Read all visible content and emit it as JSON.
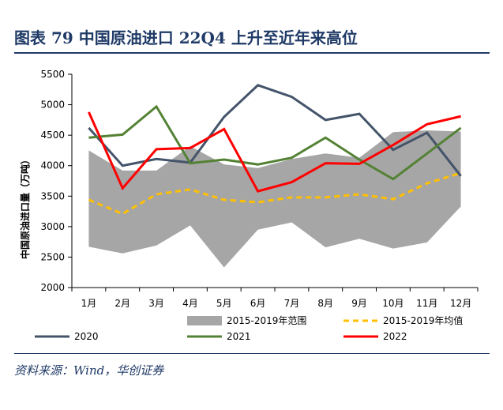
{
  "header": {
    "figure_title": "图表 79    中国原油进口 22Q4 上升至近年来高位"
  },
  "source": "资料来源：Wind，华创证券",
  "colors": {
    "band": "#a6a6a6",
    "avg": "#ffc000",
    "s2020": "#44546a",
    "s2021": "#548235",
    "s2022": "#ff0000",
    "title": "#1f3a66"
  },
  "chart_data": {
    "type": "line",
    "title": "",
    "ylabel": "中国原油进口量（万吨）",
    "xlabel": "",
    "ylim": [
      2000,
      5500
    ],
    "yticks": [
      2000,
      2500,
      3000,
      3500,
      4000,
      4500,
      5000,
      5500
    ],
    "categories": [
      "1月",
      "2月",
      "3月",
      "4月",
      "5月",
      "6月",
      "7月",
      "8月",
      "9月",
      "10月",
      "11月",
      "12月"
    ],
    "band": {
      "name": "2015-2019年范围",
      "low": [
        2670,
        2560,
        2690,
        3020,
        2330,
        2950,
        3070,
        2660,
        2800,
        2640,
        2740,
        3330
      ],
      "high": [
        4250,
        3920,
        3920,
        4320,
        4020,
        3960,
        4110,
        4200,
        4130,
        4550,
        4580,
        4560
      ]
    },
    "series": [
      {
        "name": "2015-2019年均值",
        "style": "dashed",
        "values": [
          3440,
          3210,
          3530,
          3610,
          3440,
          3400,
          3480,
          3480,
          3530,
          3450,
          3710,
          3880
        ]
      },
      {
        "name": "2020",
        "values": [
          4620,
          4000,
          4110,
          4050,
          4800,
          5320,
          5130,
          4750,
          4850,
          4260,
          4540,
          3830
        ]
      },
      {
        "name": "2021",
        "values": [
          4460,
          4510,
          4970,
          4040,
          4100,
          4020,
          4130,
          4460,
          4100,
          3780,
          4200,
          4620
        ]
      },
      {
        "name": "2022",
        "values": [
          4880,
          3630,
          4270,
          4290,
          4600,
          3580,
          3730,
          4040,
          4030,
          4340,
          4680,
          4810
        ]
      }
    ],
    "legend_position": "bottom",
    "grid": false
  }
}
